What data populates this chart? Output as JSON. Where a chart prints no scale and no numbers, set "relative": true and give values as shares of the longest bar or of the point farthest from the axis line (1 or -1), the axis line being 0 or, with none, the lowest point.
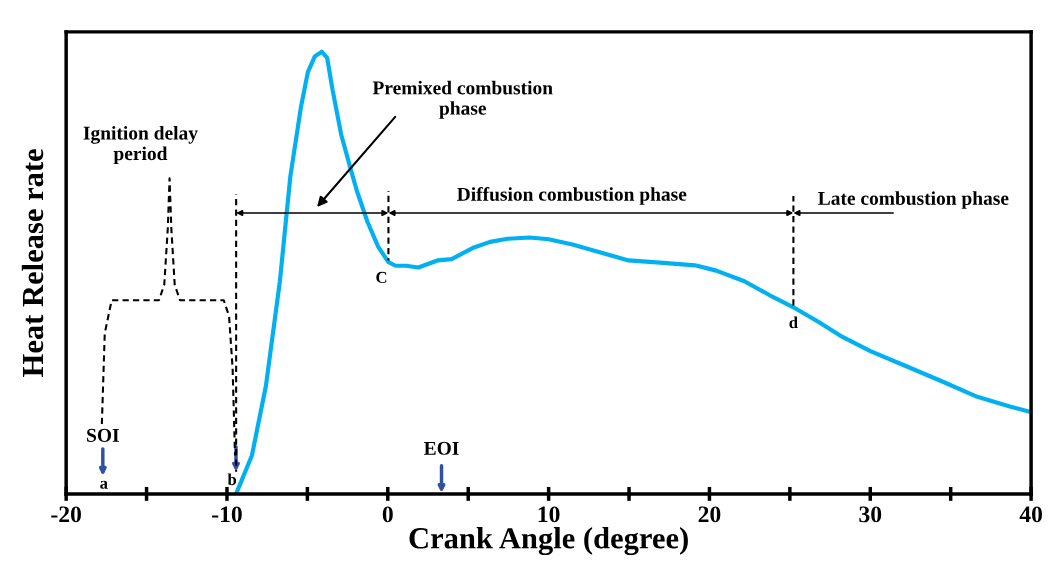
{
  "chart_data": {
    "type": "line",
    "relative": true,
    "xlabel": "Crank Angle (degree)",
    "ylabel": "Heat Release rate",
    "xlim": [
      -20,
      40
    ],
    "xticks": [
      -20,
      {
        "value": -15,
        "label": null
      },
      -10,
      {
        "value": -5,
        "label": null
      },
      0,
      {
        "value": 5,
        "label": null
      },
      10,
      {
        "value": 15,
        "label": null
      },
      20,
      {
        "value": 25,
        "label": null
      },
      30,
      {
        "value": 35,
        "label": null
      },
      40
    ],
    "grid": false,
    "legend": false,
    "series": [
      {
        "color": "#00b0f0",
        "line_style": "solid",
        "x": [
          -9.43,
          -8.45,
          -7.58,
          -6.71,
          -6.06,
          -5.4,
          -4.97,
          -4.53,
          -4.1,
          -3.77,
          -3.44,
          -2.9,
          -2.35,
          -1.92,
          -1.26,
          -0.61,
          0.04,
          0.48,
          1.13,
          1.9,
          3.09,
          3.97,
          5.27,
          6.36,
          7.45,
          8.82,
          10,
          11.48,
          13.23,
          14.97,
          16.93,
          19.11,
          20.42,
          22.17,
          23.91,
          25.22,
          26.74,
          28.27,
          30.01,
          31.76,
          34.37,
          36.55,
          38.73,
          40
        ],
        "values": [
          0,
          0.087,
          0.244,
          0.481,
          0.718,
          0.875,
          0.954,
          0.99,
          1.0,
          0.986,
          0.915,
          0.813,
          0.74,
          0.685,
          0.615,
          0.56,
          0.524,
          0.516,
          0.516,
          0.512,
          0.528,
          0.531,
          0.556,
          0.57,
          0.577,
          0.58,
          0.576,
          0.564,
          0.546,
          0.528,
          0.523,
          0.517,
          0.505,
          0.481,
          0.446,
          0.422,
          0.39,
          0.355,
          0.323,
          0.296,
          0.256,
          0.221,
          0.197,
          0.185
        ]
      },
      {
        "color": "#000000",
        "line_style": "dashed",
        "x": [
          -17.78,
          -17.6,
          -17.17,
          -14.23,
          -13.9,
          -13.68,
          -13.57,
          -13.46,
          -13.25,
          -12.92,
          -10.2,
          -9.87,
          -9.65,
          -9.5
        ],
        "values": [
          0.158,
          0.363,
          0.438,
          0.438,
          0.473,
          0.6,
          0.714,
          0.6,
          0.473,
          0.438,
          0.438,
          0.402,
          0.284,
          0.087
        ]
      },
      {
        "color": "#000000",
        "line_style": "dashed",
        "x": [
          -9.43,
          -9.43
        ],
        "values": [
          0.05,
          0.678
        ]
      },
      {
        "color": "#000000",
        "line_style": "dashed",
        "x": [
          0.04,
          0.04
        ],
        "values": [
          0.528,
          0.685
        ]
      },
      {
        "color": "#000000",
        "line_style": "dashed",
        "x": [
          25.22,
          25.22
        ],
        "values": [
          0.426,
          0.674
        ]
      }
    ],
    "annotations": [
      "Ignition delay\nperiod",
      "Premixed combustion\nphase",
      "Diffusion combustion phase",
      "Late combustion phase",
      "SOI",
      "a",
      "b",
      {
        "text": "C",
        "x": 0.04,
        "y": 0.524
      },
      {
        "text": "d",
        "x": 25.22,
        "y": 0.422
      },
      "EOI"
    ]
  }
}
